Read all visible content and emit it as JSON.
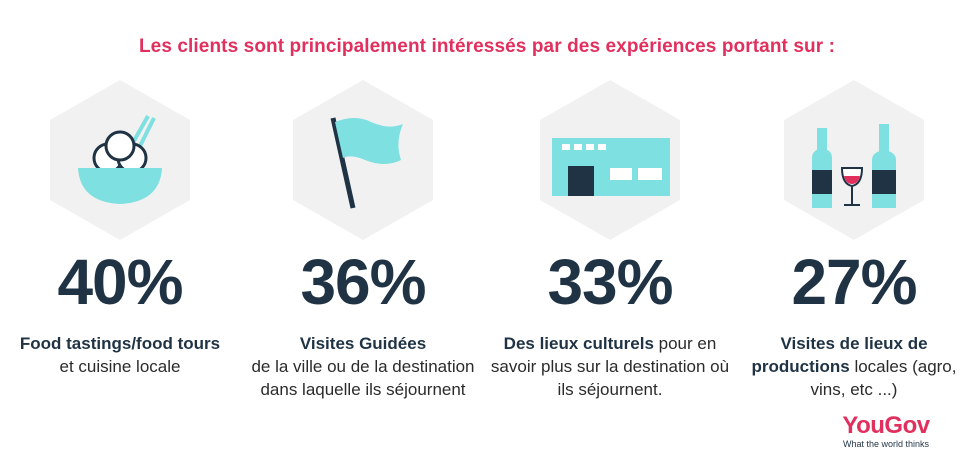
{
  "headline": "Les clients sont principalement intéressés par des expériences portant sur :",
  "colors": {
    "accent": "#e1305e",
    "icon_fill": "#7ee0e0",
    "dark": "#1f3345",
    "hex_bg": "#f1f1f1"
  },
  "items": [
    {
      "percent": "40%",
      "bold": "Food tastings/food tours",
      "rest": "et cuisine locale",
      "icon": "food-bowl-icon"
    },
    {
      "percent": "36%",
      "bold": "Visites Guidées",
      "rest": "de la ville ou de la destination dans laquelle ils séjournent",
      "icon": "flag-icon"
    },
    {
      "percent": "33%",
      "bold": "Des lieux culturels",
      "rest": "pour en savoir plus sur la destination où ils séjournent.",
      "icon": "building-icon"
    },
    {
      "percent": "27%",
      "bold": "Visites de lieux de productions",
      "rest": "locales (agro, vins, etc ...)",
      "icon": "wine-bottles-icon"
    }
  ],
  "logo": {
    "brand": "YouGov",
    "tagline": "What the world thinks"
  }
}
